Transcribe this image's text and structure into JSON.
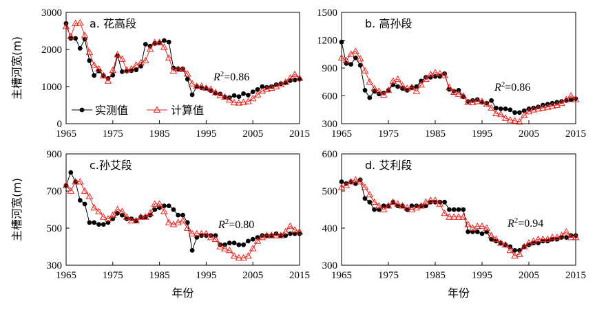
{
  "chart_data": [
    {
      "type": "line",
      "title": "a. 花高段",
      "r2_symbol": "R",
      "r2_sup": "2",
      "r2_value": "=0.86",
      "ylabel": "主槽河宽(m)",
      "xlabel": "",
      "ylim": [
        0,
        3000
      ],
      "yticks": [
        0,
        1000,
        2000,
        3000
      ],
      "xlim": [
        1965,
        2015
      ],
      "xticks": [
        1965,
        1975,
        1985,
        1995,
        2005,
        2015
      ],
      "legend": [
        "实测值",
        "计算值"
      ],
      "x": [
        1965,
        1966,
        1967,
        1968,
        1969,
        1970,
        1971,
        1972,
        1973,
        1974,
        1975,
        1976,
        1977,
        1978,
        1979,
        1980,
        1981,
        1982,
        1983,
        1984,
        1985,
        1986,
        1987,
        1988,
        1989,
        1990,
        1991,
        1992,
        1993,
        1994,
        1995,
        1996,
        1997,
        1998,
        1999,
        2000,
        2001,
        2002,
        2003,
        2004,
        2005,
        2006,
        2007,
        2008,
        2009,
        2010,
        2011,
        2012,
        2013,
        2014,
        2015
      ],
      "series": [
        {
          "name": "实测值",
          "color": "#000000",
          "marker": "circle",
          "values": [
            2700,
            2300,
            2300,
            2030,
            2280,
            1700,
            1300,
            1420,
            1300,
            1220,
            1310,
            1830,
            1400,
            1420,
            1430,
            1450,
            1550,
            2140,
            2090,
            2160,
            2180,
            2240,
            2200,
            1500,
            1480,
            1480,
            1200,
            780,
            1000,
            970,
            950,
            890,
            820,
            800,
            720,
            700,
            760,
            730,
            810,
            770,
            860,
            920,
            1000,
            980,
            1000,
            1050,
            1080,
            1100,
            1160,
            1180,
            1200
          ]
        },
        {
          "name": "计算值",
          "color": "#e8231e",
          "marker": "triangle",
          "values": [
            2620,
            2350,
            2700,
            2720,
            2380,
            1920,
            1580,
            1480,
            1290,
            1150,
            1440,
            1860,
            1740,
            1450,
            1480,
            1580,
            1640,
            1700,
            2010,
            2190,
            2190,
            2060,
            1770,
            1420,
            1470,
            1460,
            1340,
            1080,
            1010,
            1010,
            960,
            930,
            840,
            760,
            720,
            640,
            570,
            560,
            580,
            600,
            680,
            780,
            880,
            930,
            960,
            1000,
            1060,
            1120,
            1230,
            1330,
            1230
          ]
        }
      ]
    },
    {
      "type": "line",
      "title": "b. 高孙段",
      "r2_symbol": "R",
      "r2_sup": "2",
      "r2_value": "=0.86",
      "ylabel": "",
      "xlabel": "",
      "ylim": [
        300,
        1500
      ],
      "yticks": [
        300,
        600,
        900,
        1200,
        1500
      ],
      "xlim": [
        1965,
        2015
      ],
      "xticks": [
        1965,
        1975,
        1985,
        1995,
        2005,
        2015
      ],
      "x": [
        1965,
        1966,
        1967,
        1968,
        1969,
        1970,
        1971,
        1972,
        1973,
        1974,
        1975,
        1976,
        1977,
        1978,
        1979,
        1980,
        1981,
        1982,
        1983,
        1984,
        1985,
        1986,
        1987,
        1988,
        1989,
        1990,
        1991,
        1992,
        1993,
        1994,
        1995,
        1996,
        1997,
        1998,
        1999,
        2000,
        2001,
        2002,
        2003,
        2004,
        2005,
        2006,
        2007,
        2008,
        2009,
        2010,
        2011,
        2012,
        2013,
        2014,
        2015
      ],
      "series": [
        {
          "name": "实测值",
          "color": "#000000",
          "marker": "circle",
          "values": [
            1180,
            950,
            940,
            1010,
            930,
            660,
            580,
            650,
            620,
            630,
            660,
            720,
            700,
            680,
            660,
            690,
            700,
            760,
            800,
            800,
            810,
            810,
            840,
            670,
            650,
            660,
            590,
            540,
            550,
            560,
            530,
            520,
            550,
            470,
            460,
            460,
            450,
            420,
            420,
            440,
            460,
            470,
            480,
            500,
            510,
            520,
            530,
            540,
            550,
            560,
            570
          ]
        },
        {
          "name": "计算值",
          "color": "#e8231e",
          "marker": "triangle",
          "values": [
            1010,
            980,
            1050,
            1080,
            1000,
            870,
            750,
            680,
            650,
            610,
            660,
            760,
            780,
            710,
            680,
            690,
            650,
            720,
            780,
            830,
            850,
            840,
            820,
            690,
            640,
            620,
            600,
            530,
            530,
            540,
            540,
            510,
            470,
            410,
            400,
            360,
            340,
            330,
            320,
            390,
            430,
            450,
            460,
            470,
            480,
            490,
            500,
            520,
            560,
            600,
            560
          ]
        }
      ]
    },
    {
      "type": "line",
      "title": "c.孙艾段",
      "r2_symbol": "R",
      "r2_sup": "2",
      "r2_value": "=0.80",
      "ylabel": "主槽河宽(m)",
      "xlabel": "年份",
      "ylim": [
        300,
        900
      ],
      "yticks": [
        300,
        500,
        700,
        900
      ],
      "xlim": [
        1965,
        2015
      ],
      "xticks": [
        1965,
        1975,
        1985,
        1995,
        2005,
        2015
      ],
      "x": [
        1965,
        1966,
        1967,
        1968,
        1969,
        1970,
        1971,
        1972,
        1973,
        1974,
        1975,
        1976,
        1977,
        1978,
        1979,
        1980,
        1981,
        1982,
        1983,
        1984,
        1985,
        1986,
        1987,
        1988,
        1989,
        1990,
        1991,
        1992,
        1993,
        1994,
        1995,
        1996,
        1997,
        1998,
        1999,
        2000,
        2001,
        2002,
        2003,
        2004,
        2005,
        2006,
        2007,
        2008,
        2009,
        2010,
        2011,
        2012,
        2013,
        2014,
        2015
      ],
      "series": [
        {
          "name": "实测值",
          "color": "#000000",
          "marker": "circle",
          "values": [
            730,
            800,
            750,
            650,
            630,
            530,
            530,
            520,
            520,
            530,
            550,
            580,
            570,
            550,
            550,
            540,
            560,
            560,
            570,
            600,
            610,
            620,
            620,
            600,
            570,
            570,
            530,
            380,
            450,
            460,
            460,
            460,
            460,
            410,
            410,
            420,
            420,
            410,
            410,
            430,
            440,
            450,
            460,
            460,
            460,
            470,
            460,
            460,
            470,
            470,
            470
          ]
        },
        {
          "name": "计算值",
          "color": "#e8231e",
          "marker": "triangle",
          "values": [
            730,
            700,
            750,
            750,
            700,
            670,
            610,
            590,
            560,
            550,
            570,
            600,
            590,
            560,
            540,
            540,
            560,
            560,
            580,
            630,
            630,
            590,
            530,
            520,
            530,
            540,
            500,
            470,
            470,
            470,
            470,
            450,
            440,
            400,
            390,
            380,
            350,
            340,
            340,
            350,
            390,
            430,
            450,
            460,
            460,
            460,
            460,
            480,
            510,
            490,
            480
          ]
        }
      ]
    },
    {
      "type": "line",
      "title": "d. 艾利段",
      "r2_symbol": "R",
      "r2_sup": "2",
      "r2_value": "=0.94",
      "ylabel": "",
      "xlabel": "年份",
      "ylim": [
        300,
        600
      ],
      "yticks": [
        300,
        400,
        500,
        600
      ],
      "xlim": [
        1965,
        2015
      ],
      "xticks": [
        1965,
        1975,
        1985,
        1995,
        2005,
        2015
      ],
      "x": [
        1965,
        1966,
        1967,
        1968,
        1969,
        1970,
        1971,
        1972,
        1973,
        1974,
        1975,
        1976,
        1977,
        1978,
        1979,
        1980,
        1981,
        1982,
        1983,
        1984,
        1985,
        1986,
        1987,
        1988,
        1989,
        1990,
        1991,
        1992,
        1993,
        1994,
        1995,
        1996,
        1997,
        1998,
        1999,
        2000,
        2001,
        2002,
        2003,
        2004,
        2005,
        2006,
        2007,
        2008,
        2009,
        2010,
        2011,
        2012,
        2013,
        2014,
        2015
      ],
      "series": [
        {
          "name": "实测值",
          "color": "#000000",
          "marker": "circle",
          "values": [
            525,
            520,
            525,
            520,
            530,
            480,
            470,
            450,
            450,
            460,
            460,
            470,
            460,
            460,
            450,
            460,
            460,
            460,
            460,
            470,
            470,
            470,
            470,
            450,
            450,
            450,
            450,
            390,
            390,
            390,
            385,
            390,
            370,
            365,
            360,
            355,
            350,
            340,
            340,
            350,
            355,
            360,
            360,
            365,
            365,
            370,
            370,
            375,
            375,
            380,
            380
          ]
        },
        {
          "name": "计算值",
          "color": "#e8231e",
          "marker": "triangle",
          "values": [
            510,
            515,
            525,
            530,
            525,
            510,
            490,
            470,
            460,
            450,
            460,
            470,
            465,
            460,
            455,
            450,
            455,
            460,
            470,
            475,
            475,
            465,
            440,
            430,
            430,
            430,
            430,
            410,
            400,
            405,
            405,
            400,
            380,
            370,
            360,
            355,
            340,
            325,
            330,
            350,
            360,
            365,
            370,
            370,
            370,
            375,
            375,
            380,
            390,
            375,
            375
          ]
        }
      ]
    }
  ]
}
